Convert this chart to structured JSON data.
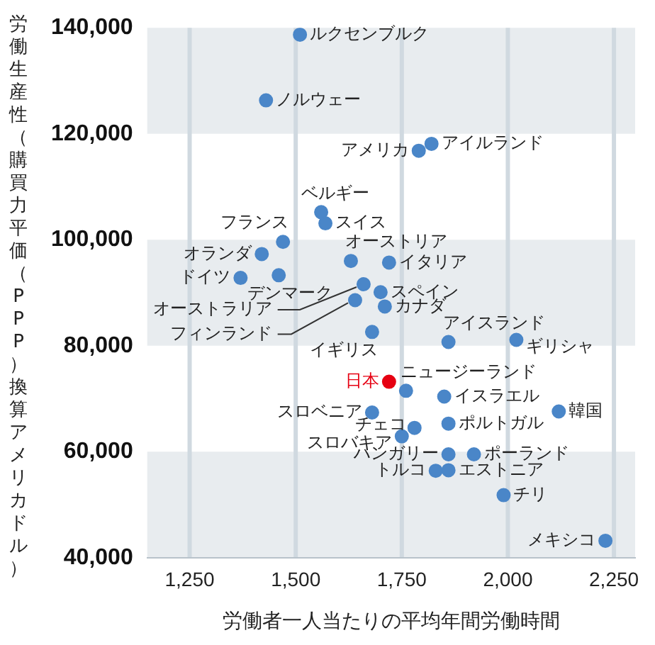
{
  "chart_data": {
    "type": "scatter",
    "xlabel": "労働者一人当たりの平均年間労働時間",
    "ylabel": "労働生産性（購買力平価（PPP）換算アメリカドル）",
    "xlim": [
      1150,
      2300
    ],
    "ylim": [
      40000,
      140000
    ],
    "xticks": [
      {
        "value": 1250,
        "label": "1,250"
      },
      {
        "value": 1500,
        "label": "1,500"
      },
      {
        "value": 1750,
        "label": "1,750"
      },
      {
        "value": 2000,
        "label": "2,000"
      },
      {
        "value": 2250,
        "label": "2,250"
      }
    ],
    "yticks": [
      {
        "value": 40000,
        "label": "40,000"
      },
      {
        "value": 60000,
        "label": "60,000"
      },
      {
        "value": 80000,
        "label": "80,000"
      },
      {
        "value": 100000,
        "label": "100,000"
      },
      {
        "value": 120000,
        "label": "120,000"
      },
      {
        "value": 140000,
        "label": "140,000"
      }
    ],
    "grid": true,
    "marker": "circle",
    "series": [
      {
        "name": "ルクセンブルク",
        "color": "#4a86c8",
        "x": [
          1510
        ],
        "values": [
          138700
        ]
      },
      {
        "name": "ノルウェー",
        "color": "#4a86c8",
        "x": [
          1430
        ],
        "values": [
          126300
        ]
      },
      {
        "name": "アメリカ",
        "color": "#4a86c8",
        "x": [
          1790
        ],
        "values": [
          116800
        ]
      },
      {
        "name": "アイルランド",
        "color": "#4a86c8",
        "x": [
          1820
        ],
        "values": [
          118100
        ]
      },
      {
        "name": "ベルギー",
        "color": "#4a86c8",
        "x": [
          1560
        ],
        "values": [
          105200
        ]
      },
      {
        "name": "スイス",
        "color": "#4a86c8",
        "x": [
          1570
        ],
        "values": [
          103100
        ]
      },
      {
        "name": "フランス",
        "color": "#4a86c8",
        "x": [
          1470
        ],
        "values": [
          99600
        ]
      },
      {
        "name": "オランダ",
        "color": "#4a86c8",
        "x": [
          1420
        ],
        "values": [
          97300
        ]
      },
      {
        "name": "ドイツ",
        "color": "#4a86c8",
        "x": [
          1370
        ],
        "values": [
          92800
        ]
      },
      {
        "name": "デンマーク",
        "color": "#4a86c8",
        "x": [
          1460
        ],
        "values": [
          93300
        ]
      },
      {
        "name": "オーストリア",
        "color": "#4a86c8",
        "x": [
          1630
        ],
        "values": [
          96000
        ]
      },
      {
        "name": "イタリア",
        "color": "#4a86c8",
        "x": [
          1720
        ],
        "values": [
          95700
        ]
      },
      {
        "name": "オーストラリア",
        "color": "#4a86c8",
        "x": [
          1660
        ],
        "values": [
          91600
        ]
      },
      {
        "name": "フィンランド",
        "color": "#4a86c8",
        "x": [
          1640
        ],
        "values": [
          88600
        ]
      },
      {
        "name": "スペイン",
        "color": "#4a86c8",
        "x": [
          1700
        ],
        "values": [
          90100
        ]
      },
      {
        "name": "カナダ",
        "color": "#4a86c8",
        "x": [
          1710
        ],
        "values": [
          87400
        ]
      },
      {
        "name": "イギリス",
        "color": "#4a86c8",
        "x": [
          1680
        ],
        "values": [
          82600
        ]
      },
      {
        "name": "アイスランド",
        "color": "#4a86c8",
        "x": [
          1860
        ],
        "values": [
          80700
        ]
      },
      {
        "name": "ギリシャ",
        "color": "#4a86c8",
        "x": [
          2020
        ],
        "values": [
          81100
        ]
      },
      {
        "name": "日本",
        "color": "#e60012",
        "x": [
          1720
        ],
        "values": [
          73200
        ]
      },
      {
        "name": "ニュージーランド",
        "color": "#4a86c8",
        "x": [
          1760
        ],
        "values": [
          71500
        ]
      },
      {
        "name": "イスラエル",
        "color": "#4a86c8",
        "x": [
          1850
        ],
        "values": [
          70400
        ]
      },
      {
        "name": "韓国",
        "color": "#4a86c8",
        "x": [
          2120
        ],
        "values": [
          67600
        ]
      },
      {
        "name": "スロベニア",
        "color": "#4a86c8",
        "x": [
          1680
        ],
        "values": [
          67400
        ]
      },
      {
        "name": "チェコ",
        "color": "#4a86c8",
        "x": [
          1780
        ],
        "values": [
          64500
        ]
      },
      {
        "name": "ポルトガル",
        "color": "#4a86c8",
        "x": [
          1860
        ],
        "values": [
          65300
        ]
      },
      {
        "name": "スロバキア",
        "color": "#4a86c8",
        "x": [
          1750
        ],
        "values": [
          62900
        ]
      },
      {
        "name": "ハンガリー",
        "color": "#4a86c8",
        "x": [
          1860
        ],
        "values": [
          59500
        ]
      },
      {
        "name": "ポーランド",
        "color": "#4a86c8",
        "x": [
          1920
        ],
        "values": [
          59500
        ]
      },
      {
        "name": "トルコ",
        "color": "#4a86c8",
        "x": [
          1830
        ],
        "values": [
          56400
        ]
      },
      {
        "name": "エストニア",
        "color": "#4a86c8",
        "x": [
          1860
        ],
        "values": [
          56500
        ]
      },
      {
        "name": "チリ",
        "color": "#4a86c8",
        "x": [
          1990
        ],
        "values": [
          51800
        ]
      },
      {
        "name": "メキシコ",
        "color": "#4a86c8",
        "x": [
          2230
        ],
        "values": [
          43200
        ]
      }
    ]
  }
}
